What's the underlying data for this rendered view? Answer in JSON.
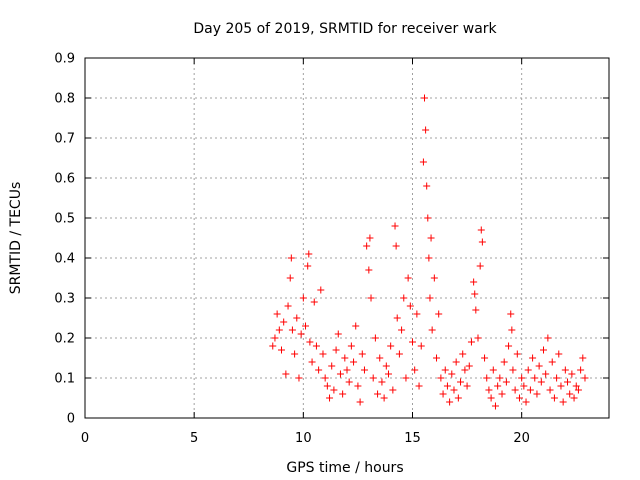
{
  "chart_data": {
    "type": "scatter",
    "title": "Day 205 of 2019, SRMTID for receiver wark",
    "xlabel": "GPS time / hours",
    "ylabel": "SRMTID / TECUs",
    "xlim": [
      0,
      24
    ],
    "ylim": [
      0,
      0.9
    ],
    "xticks": [
      0,
      5,
      10,
      15,
      20
    ],
    "xtick_labels": [
      "0",
      "5",
      "10",
      "15",
      "20"
    ],
    "yticks": [
      0,
      0.1,
      0.2,
      0.3,
      0.4,
      0.5,
      0.6,
      0.7,
      0.8,
      0.9
    ],
    "ytick_labels": [
      "0",
      "0.1",
      "0.2",
      "0.3",
      "0.4",
      "0.5",
      "0.6",
      "0.7",
      "0.8",
      "0.9"
    ],
    "grid": true,
    "marker": "+",
    "color": "#ff0000",
    "series": [
      {
        "name": "SRMTID",
        "points": [
          [
            8.6,
            0.18
          ],
          [
            8.7,
            0.2
          ],
          [
            8.8,
            0.26
          ],
          [
            8.9,
            0.22
          ],
          [
            9.0,
            0.17
          ],
          [
            9.1,
            0.24
          ],
          [
            9.2,
            0.11
          ],
          [
            9.3,
            0.28
          ],
          [
            9.4,
            0.35
          ],
          [
            9.45,
            0.4
          ],
          [
            9.5,
            0.22
          ],
          [
            9.6,
            0.16
          ],
          [
            9.7,
            0.25
          ],
          [
            9.8,
            0.1
          ],
          [
            9.9,
            0.21
          ],
          [
            10.0,
            0.3
          ],
          [
            10.1,
            0.23
          ],
          [
            10.2,
            0.38
          ],
          [
            10.25,
            0.41
          ],
          [
            10.3,
            0.19
          ],
          [
            10.4,
            0.14
          ],
          [
            10.5,
            0.29
          ],
          [
            10.6,
            0.18
          ],
          [
            10.7,
            0.12
          ],
          [
            10.8,
            0.32
          ],
          [
            10.9,
            0.16
          ],
          [
            11.0,
            0.1
          ],
          [
            11.1,
            0.08
          ],
          [
            11.2,
            0.05
          ],
          [
            11.3,
            0.13
          ],
          [
            11.4,
            0.07
          ],
          [
            11.5,
            0.17
          ],
          [
            11.6,
            0.21
          ],
          [
            11.7,
            0.11
          ],
          [
            11.8,
            0.06
          ],
          [
            11.9,
            0.15
          ],
          [
            12.0,
            0.12
          ],
          [
            12.1,
            0.09
          ],
          [
            12.2,
            0.18
          ],
          [
            12.3,
            0.14
          ],
          [
            12.4,
            0.23
          ],
          [
            12.5,
            0.08
          ],
          [
            12.6,
            0.04
          ],
          [
            12.7,
            0.16
          ],
          [
            12.8,
            0.12
          ],
          [
            12.9,
            0.43
          ],
          [
            13.0,
            0.37
          ],
          [
            13.05,
            0.45
          ],
          [
            13.1,
            0.3
          ],
          [
            13.2,
            0.1
          ],
          [
            13.3,
            0.2
          ],
          [
            13.4,
            0.06
          ],
          [
            13.5,
            0.15
          ],
          [
            13.6,
            0.09
          ],
          [
            13.7,
            0.05
          ],
          [
            13.8,
            0.13
          ],
          [
            13.9,
            0.11
          ],
          [
            14.0,
            0.18
          ],
          [
            14.1,
            0.07
          ],
          [
            14.2,
            0.48
          ],
          [
            14.25,
            0.43
          ],
          [
            14.3,
            0.25
          ],
          [
            14.4,
            0.16
          ],
          [
            14.5,
            0.22
          ],
          [
            14.6,
            0.3
          ],
          [
            14.7,
            0.1
          ],
          [
            14.8,
            0.35
          ],
          [
            14.9,
            0.28
          ],
          [
            15.0,
            0.19
          ],
          [
            15.1,
            0.12
          ],
          [
            15.2,
            0.26
          ],
          [
            15.3,
            0.08
          ],
          [
            15.4,
            0.18
          ],
          [
            15.5,
            0.64
          ],
          [
            15.55,
            0.8
          ],
          [
            15.6,
            0.72
          ],
          [
            15.65,
            0.58
          ],
          [
            15.7,
            0.5
          ],
          [
            15.75,
            0.4
          ],
          [
            15.8,
            0.3
          ],
          [
            15.85,
            0.45
          ],
          [
            15.9,
            0.22
          ],
          [
            16.0,
            0.35
          ],
          [
            16.1,
            0.15
          ],
          [
            16.2,
            0.26
          ],
          [
            16.3,
            0.1
          ],
          [
            16.4,
            0.06
          ],
          [
            16.5,
            0.12
          ],
          [
            16.6,
            0.08
          ],
          [
            16.7,
            0.04
          ],
          [
            16.8,
            0.11
          ],
          [
            16.9,
            0.07
          ],
          [
            17.0,
            0.14
          ],
          [
            17.1,
            0.05
          ],
          [
            17.2,
            0.09
          ],
          [
            17.3,
            0.16
          ],
          [
            17.4,
            0.12
          ],
          [
            17.5,
            0.08
          ],
          [
            17.6,
            0.13
          ],
          [
            17.7,
            0.19
          ],
          [
            17.8,
            0.34
          ],
          [
            17.85,
            0.31
          ],
          [
            17.9,
            0.27
          ],
          [
            18.0,
            0.2
          ],
          [
            18.1,
            0.38
          ],
          [
            18.15,
            0.47
          ],
          [
            18.2,
            0.44
          ],
          [
            18.3,
            0.15
          ],
          [
            18.4,
            0.1
          ],
          [
            18.5,
            0.07
          ],
          [
            18.6,
            0.05
          ],
          [
            18.7,
            0.12
          ],
          [
            18.8,
            0.03
          ],
          [
            18.9,
            0.08
          ],
          [
            19.0,
            0.1
          ],
          [
            19.1,
            0.06
          ],
          [
            19.2,
            0.14
          ],
          [
            19.3,
            0.09
          ],
          [
            19.4,
            0.18
          ],
          [
            19.5,
            0.26
          ],
          [
            19.55,
            0.22
          ],
          [
            19.6,
            0.12
          ],
          [
            19.7,
            0.07
          ],
          [
            19.8,
            0.16
          ],
          [
            19.9,
            0.05
          ],
          [
            20.0,
            0.1
          ],
          [
            20.1,
            0.08
          ],
          [
            20.2,
            0.04
          ],
          [
            20.3,
            0.12
          ],
          [
            20.4,
            0.07
          ],
          [
            20.5,
            0.15
          ],
          [
            20.6,
            0.1
          ],
          [
            20.7,
            0.06
          ],
          [
            20.8,
            0.13
          ],
          [
            20.9,
            0.09
          ],
          [
            21.0,
            0.17
          ],
          [
            21.1,
            0.11
          ],
          [
            21.2,
            0.2
          ],
          [
            21.3,
            0.07
          ],
          [
            21.4,
            0.14
          ],
          [
            21.5,
            0.05
          ],
          [
            21.6,
            0.1
          ],
          [
            21.7,
            0.16
          ],
          [
            21.8,
            0.08
          ],
          [
            21.9,
            0.04
          ],
          [
            22.0,
            0.12
          ],
          [
            22.1,
            0.09
          ],
          [
            22.2,
            0.06
          ],
          [
            22.3,
            0.11
          ],
          [
            22.4,
            0.05
          ],
          [
            22.5,
            0.08
          ],
          [
            22.6,
            0.07
          ],
          [
            22.7,
            0.12
          ],
          [
            22.8,
            0.15
          ],
          [
            22.9,
            0.1
          ]
        ]
      }
    ]
  }
}
